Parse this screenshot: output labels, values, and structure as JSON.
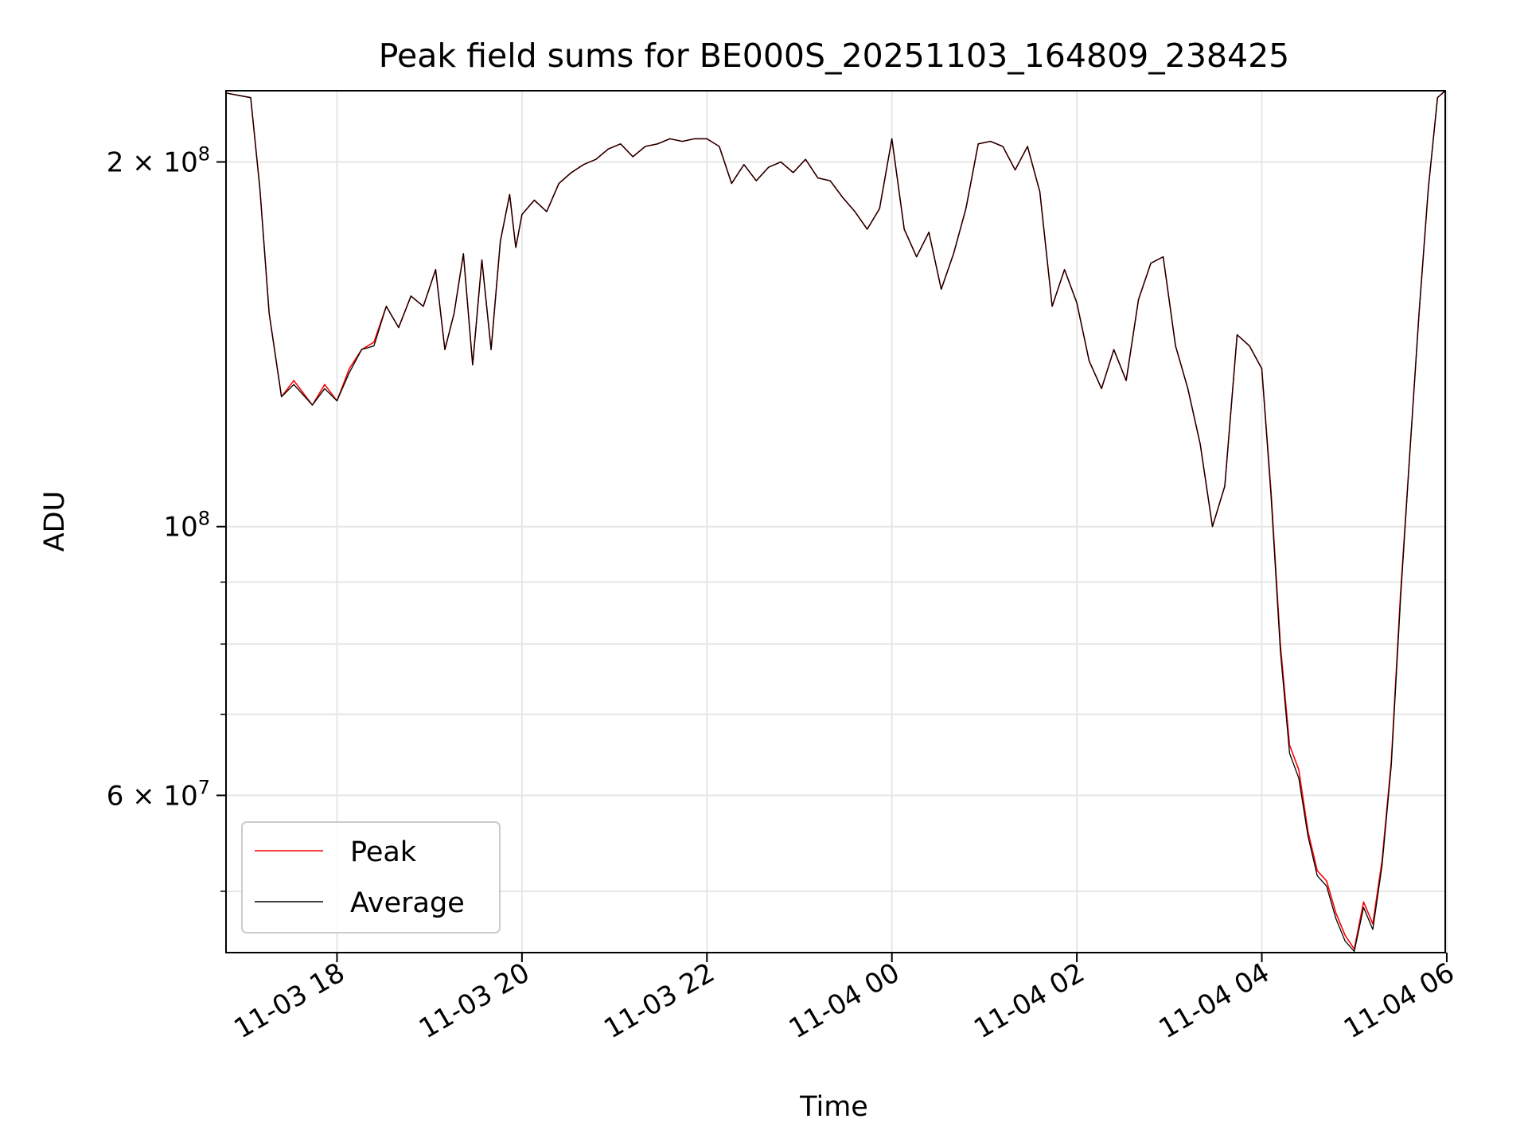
{
  "chart_data": {
    "type": "line",
    "title": "Peak field sums for BE000S_20251103_164809_238425",
    "xlabel": "Time",
    "ylabel": "ADU",
    "yscale": "log",
    "grid": true,
    "legend_location": "lower-left",
    "xlim": [
      "2025-11-03 16:48",
      "2025-11-04 05:59"
    ],
    "ylim": [
      44500000,
      229000000
    ],
    "x_ticks": [
      {
        "value": "2025-11-03 18:00",
        "label": "11-03 18"
      },
      {
        "value": "2025-11-03 20:00",
        "label": "11-03 20"
      },
      {
        "value": "2025-11-03 22:00",
        "label": "11-03 22"
      },
      {
        "value": "2025-11-04 00:00",
        "label": "11-04 00"
      },
      {
        "value": "2025-11-04 02:00",
        "label": "11-04 02"
      },
      {
        "value": "2025-11-04 04:00",
        "label": "11-04 04"
      },
      {
        "value": "2025-11-04 06:00",
        "label": "11-04 06"
      }
    ],
    "y_major_ticks": [
      {
        "value": 200000000,
        "label_base": "2 × 10",
        "label_exp": "8"
      },
      {
        "value": 100000000,
        "label_base": "10",
        "label_exp": "8"
      },
      {
        "value": 60000000,
        "label_base": "6 × 10",
        "label_exp": "7"
      }
    ],
    "y_minor_ticks": [
      50000000,
      70000000,
      80000000,
      90000000
    ],
    "x": [
      "2025-11-03 16:48",
      "2025-11-03 17:04",
      "2025-11-03 17:10",
      "2025-11-03 17:16",
      "2025-11-03 17:24",
      "2025-11-03 17:32",
      "2025-11-03 17:44",
      "2025-11-03 17:52",
      "2025-11-03 18:00",
      "2025-11-03 18:08",
      "2025-11-03 18:16",
      "2025-11-03 18:24",
      "2025-11-03 18:32",
      "2025-11-03 18:40",
      "2025-11-03 18:48",
      "2025-11-03 18:56",
      "2025-11-03 19:04",
      "2025-11-03 19:10",
      "2025-11-03 19:16",
      "2025-11-03 19:22",
      "2025-11-03 19:28",
      "2025-11-03 19:34",
      "2025-11-03 19:40",
      "2025-11-03 19:46",
      "2025-11-03 19:52",
      "2025-11-03 19:56",
      "2025-11-03 20:00",
      "2025-11-03 20:08",
      "2025-11-03 20:16",
      "2025-11-03 20:24",
      "2025-11-03 20:32",
      "2025-11-03 20:40",
      "2025-11-03 20:48",
      "2025-11-03 20:56",
      "2025-11-03 21:04",
      "2025-11-03 21:12",
      "2025-11-03 21:20",
      "2025-11-03 21:28",
      "2025-11-03 21:36",
      "2025-11-03 21:44",
      "2025-11-03 21:52",
      "2025-11-03 22:00",
      "2025-11-03 22:08",
      "2025-11-03 22:16",
      "2025-11-03 22:24",
      "2025-11-03 22:32",
      "2025-11-03 22:40",
      "2025-11-03 22:48",
      "2025-11-03 22:56",
      "2025-11-03 23:04",
      "2025-11-03 23:12",
      "2025-11-03 23:20",
      "2025-11-03 23:28",
      "2025-11-03 23:36",
      "2025-11-03 23:44",
      "2025-11-03 23:52",
      "2025-11-04 00:00",
      "2025-11-04 00:08",
      "2025-11-04 00:16",
      "2025-11-04 00:24",
      "2025-11-04 00:32",
      "2025-11-04 00:40",
      "2025-11-04 00:48",
      "2025-11-04 00:56",
      "2025-11-04 01:04",
      "2025-11-04 01:12",
      "2025-11-04 01:20",
      "2025-11-04 01:28",
      "2025-11-04 01:36",
      "2025-11-04 01:44",
      "2025-11-04 01:52",
      "2025-11-04 02:00",
      "2025-11-04 02:08",
      "2025-11-04 02:16",
      "2025-11-04 02:24",
      "2025-11-04 02:32",
      "2025-11-04 02:40",
      "2025-11-04 02:48",
      "2025-11-04 02:56",
      "2025-11-04 03:04",
      "2025-11-04 03:12",
      "2025-11-04 03:20",
      "2025-11-04 03:28",
      "2025-11-04 03:36",
      "2025-11-04 03:44",
      "2025-11-04 03:52",
      "2025-11-04 04:00",
      "2025-11-04 04:06",
      "2025-11-04 04:12",
      "2025-11-04 04:18",
      "2025-11-04 04:24",
      "2025-11-04 04:30",
      "2025-11-04 04:36",
      "2025-11-04 04:42",
      "2025-11-04 04:48",
      "2025-11-04 04:54",
      "2025-11-04 05:00",
      "2025-11-04 05:06",
      "2025-11-04 05:12",
      "2025-11-04 05:18",
      "2025-11-04 05:24",
      "2025-11-04 05:30",
      "2025-11-04 05:36",
      "2025-11-04 05:42",
      "2025-11-04 05:48",
      "2025-11-04 05:54",
      "2025-11-04 05:59"
    ],
    "series": [
      {
        "name": "Peak",
        "color": "#ff0000",
        "values": [
          228000000,
          226000000,
          190000000,
          150000000,
          128000000,
          132000000,
          126000000,
          131000000,
          127000000,
          135000000,
          140000000,
          142000000,
          152000000,
          146000000,
          155000000,
          152000000,
          163000000,
          140000000,
          150000000,
          168000000,
          136000000,
          166000000,
          140000000,
          172000000,
          188000000,
          170000000,
          181000000,
          186000000,
          182000000,
          192000000,
          196000000,
          199000000,
          201000000,
          205000000,
          207000000,
          202000000,
          206000000,
          207000000,
          209000000,
          208000000,
          209000000,
          209000000,
          206000000,
          192000000,
          199000000,
          193000000,
          198000000,
          200000000,
          196000000,
          201000000,
          194000000,
          193000000,
          187000000,
          182000000,
          176000000,
          183000000,
          209000000,
          176000000,
          167000000,
          175000000,
          157000000,
          168000000,
          183000000,
          207000000,
          208000000,
          206000000,
          197000000,
          206000000,
          189000000,
          152000000,
          163000000,
          153000000,
          137000000,
          130000000,
          140000000,
          132000000,
          154000000,
          165000000,
          167000000,
          141000000,
          130000000,
          117000000,
          100000000,
          108000000,
          144000000,
          141000000,
          135000000,
          107000000,
          80000000,
          66000000,
          63000000,
          56000000,
          52000000,
          51000000,
          48000000,
          46000000,
          44800000,
          49000000,
          47000000,
          53000000,
          64000000,
          88000000,
          115000000,
          150000000,
          190000000,
          226000000,
          229000000
        ]
      },
      {
        "name": "Average",
        "color": "#000000",
        "values": [
          228000000,
          226000000,
          190000000,
          150000000,
          128000000,
          131000000,
          126000000,
          130000000,
          127000000,
          134000000,
          140000000,
          141000000,
          152000000,
          146000000,
          155000000,
          152000000,
          163000000,
          140000000,
          150000000,
          168000000,
          136000000,
          166000000,
          140000000,
          172000000,
          188000000,
          170000000,
          181000000,
          186000000,
          182000000,
          192000000,
          196000000,
          199000000,
          201000000,
          205000000,
          207000000,
          202000000,
          206000000,
          207000000,
          209000000,
          208000000,
          209000000,
          209000000,
          206000000,
          192000000,
          199000000,
          193000000,
          198000000,
          200000000,
          196000000,
          201000000,
          194000000,
          193000000,
          187000000,
          182000000,
          176000000,
          183000000,
          209000000,
          176000000,
          167000000,
          175000000,
          157000000,
          168000000,
          183000000,
          207000000,
          208000000,
          206000000,
          197000000,
          206000000,
          189000000,
          152000000,
          163000000,
          153000000,
          137000000,
          130000000,
          140000000,
          132000000,
          154000000,
          165000000,
          167000000,
          141000000,
          130000000,
          117000000,
          100000000,
          108000000,
          144000000,
          141000000,
          135000000,
          106000000,
          79000000,
          65000000,
          62000000,
          55500000,
          51500000,
          50500000,
          47500000,
          45500000,
          44600000,
          48500000,
          46500000,
          52500000,
          63500000,
          87000000,
          115000000,
          150000000,
          190000000,
          226000000,
          229000000
        ]
      }
    ]
  }
}
